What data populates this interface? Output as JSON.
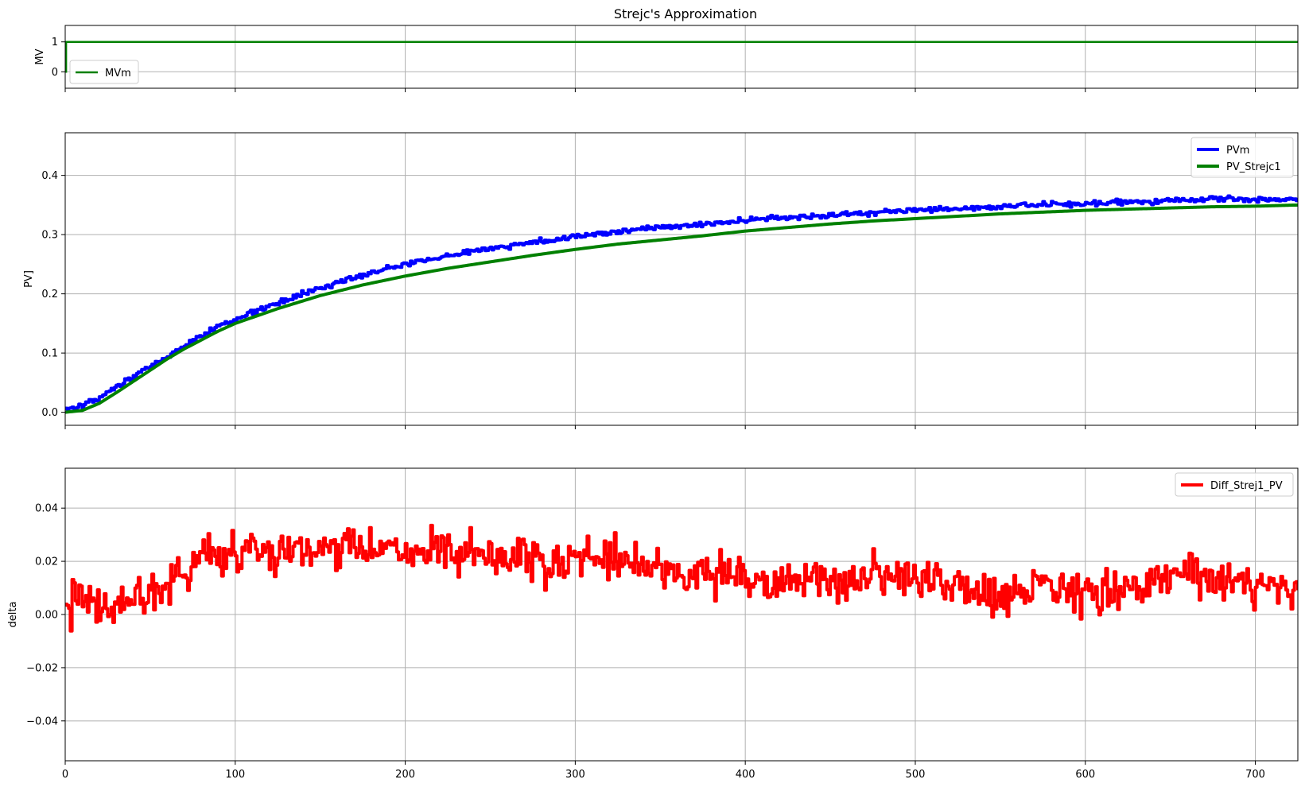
{
  "chart_data": {
    "title": "Strejc's Approximation",
    "x": {
      "range": [
        0,
        725
      ],
      "ticks": [
        0,
        100,
        200,
        300,
        400,
        500,
        600,
        700
      ],
      "tick_labels": [
        "0",
        "100",
        "200",
        "300",
        "400",
        "500",
        "600",
        "700"
      ]
    },
    "grid": true,
    "panels": [
      {
        "id": "mv",
        "type": "line",
        "ylabel": "MV",
        "ylim": [
          -0.55,
          1.55
        ],
        "yticks": [
          0,
          1
        ],
        "ytick_labels": [
          "0",
          "1"
        ],
        "legend_position": "lower-left",
        "series": [
          {
            "name": "MVm",
            "color": "#008000",
            "kind": "step",
            "points": [
              [
                0,
                0
              ],
              [
                0.5,
                0
              ],
              [
                0.5,
                1
              ],
              [
                725,
                1
              ]
            ]
          }
        ]
      },
      {
        "id": "pv",
        "type": "line",
        "ylabel": "PV]",
        "ylim": [
          -0.022,
          0.472
        ],
        "yticks": [
          0.0,
          0.1,
          0.2,
          0.3,
          0.4
        ],
        "ytick_labels": [
          "0.0",
          "0.1",
          "0.2",
          "0.3",
          "0.4"
        ],
        "legend_position": "upper-right",
        "series": [
          {
            "name": "PVm",
            "color": "#0000ff",
            "kind": "noisy",
            "points": [
              [
                0,
                0.005
              ],
              [
                10,
                0.01
              ],
              [
                20,
                0.025
              ],
              [
                40,
                0.06
              ],
              [
                60,
                0.095
              ],
              [
                80,
                0.13
              ],
              [
                100,
                0.158
              ],
              [
                125,
                0.185
              ],
              [
                150,
                0.21
              ],
              [
                175,
                0.232
              ],
              [
                200,
                0.25
              ],
              [
                225,
                0.265
              ],
              [
                250,
                0.277
              ],
              [
                275,
                0.287
              ],
              [
                300,
                0.297
              ],
              [
                325,
                0.305
              ],
              [
                350,
                0.312
              ],
              [
                375,
                0.318
              ],
              [
                400,
                0.324
              ],
              [
                425,
                0.329
              ],
              [
                450,
                0.333
              ],
              [
                475,
                0.337
              ],
              [
                500,
                0.341
              ],
              [
                525,
                0.344
              ],
              [
                550,
                0.347
              ],
              [
                575,
                0.35
              ],
              [
                600,
                0.352
              ],
              [
                625,
                0.355
              ],
              [
                650,
                0.358
              ],
              [
                675,
                0.36
              ],
              [
                700,
                0.36
              ],
              [
                725,
                0.358
              ]
            ]
          },
          {
            "name": "PV_Strejc1",
            "color": "#008000",
            "kind": "smooth",
            "points": [
              [
                0,
                0.0
              ],
              [
                10,
                0.003
              ],
              [
                20,
                0.015
              ],
              [
                30,
                0.033
              ],
              [
                40,
                0.052
              ],
              [
                50,
                0.071
              ],
              [
                60,
                0.09
              ],
              [
                70,
                0.107
              ],
              [
                80,
                0.122
              ],
              [
                90,
                0.137
              ],
              [
                100,
                0.15
              ],
              [
                125,
                0.175
              ],
              [
                150,
                0.197
              ],
              [
                175,
                0.215
              ],
              [
                200,
                0.23
              ],
              [
                225,
                0.243
              ],
              [
                250,
                0.254
              ],
              [
                275,
                0.265
              ],
              [
                300,
                0.275
              ],
              [
                325,
                0.284
              ],
              [
                350,
                0.291
              ],
              [
                375,
                0.298
              ],
              [
                400,
                0.306
              ],
              [
                425,
                0.312
              ],
              [
                450,
                0.318
              ],
              [
                475,
                0.323
              ],
              [
                500,
                0.327
              ],
              [
                525,
                0.331
              ],
              [
                550,
                0.335
              ],
              [
                575,
                0.338
              ],
              [
                600,
                0.341
              ],
              [
                625,
                0.343
              ],
              [
                650,
                0.345
              ],
              [
                675,
                0.347
              ],
              [
                700,
                0.348
              ],
              [
                725,
                0.35
              ]
            ]
          }
        ]
      },
      {
        "id": "delta",
        "type": "line",
        "ylabel": "delta",
        "ylim": [
          -0.055,
          0.055
        ],
        "yticks": [
          -0.04,
          -0.02,
          0.0,
          0.02,
          0.04
        ],
        "ytick_labels": [
          "−0.04",
          "−0.02",
          "0.00",
          "0.02",
          "0.04"
        ],
        "legend_position": "upper-right",
        "series": [
          {
            "name": "Diff_Strej1_PV",
            "color": "#ff0000",
            "kind": "noisy",
            "points": [
              [
                0,
                0.003
              ],
              [
                10,
                0.005
              ],
              [
                20,
                0.002
              ],
              [
                30,
                0.004
              ],
              [
                40,
                0.007
              ],
              [
                50,
                0.009
              ],
              [
                60,
                0.012
              ],
              [
                70,
                0.017
              ],
              [
                80,
                0.022
              ],
              [
                90,
                0.021
              ],
              [
                100,
                0.024
              ],
              [
                110,
                0.025
              ],
              [
                125,
                0.024
              ],
              [
                140,
                0.024
              ],
              [
                150,
                0.024
              ],
              [
                160,
                0.025
              ],
              [
                175,
                0.024
              ],
              [
                190,
                0.023
              ],
              [
                200,
                0.025
              ],
              [
                210,
                0.024
              ],
              [
                225,
                0.023
              ],
              [
                240,
                0.021
              ],
              [
                250,
                0.021
              ],
              [
                260,
                0.021
              ],
              [
                275,
                0.019
              ],
              [
                290,
                0.019
              ],
              [
                300,
                0.021
              ],
              [
                315,
                0.022
              ],
              [
                325,
                0.021
              ],
              [
                340,
                0.018
              ],
              [
                350,
                0.016
              ],
              [
                360,
                0.016
              ],
              [
                375,
                0.015
              ],
              [
                390,
                0.014
              ],
              [
                400,
                0.014
              ],
              [
                425,
                0.012
              ],
              [
                440,
                0.013
              ],
              [
                450,
                0.012
              ],
              [
                460,
                0.012
              ],
              [
                475,
                0.015
              ],
              [
                490,
                0.013
              ],
              [
                500,
                0.012
              ],
              [
                510,
                0.012
              ],
              [
                525,
                0.01
              ],
              [
                540,
                0.007
              ],
              [
                550,
                0.006
              ],
              [
                560,
                0.01
              ],
              [
                575,
                0.011
              ],
              [
                590,
                0.009
              ],
              [
                600,
                0.008
              ],
              [
                610,
                0.007
              ],
              [
                625,
                0.01
              ],
              [
                640,
                0.013
              ],
              [
                650,
                0.015
              ],
              [
                660,
                0.016
              ],
              [
                675,
                0.013
              ],
              [
                690,
                0.011
              ],
              [
                700,
                0.01
              ],
              [
                710,
                0.009
              ],
              [
                725,
                0.009
              ]
            ]
          }
        ]
      }
    ]
  }
}
